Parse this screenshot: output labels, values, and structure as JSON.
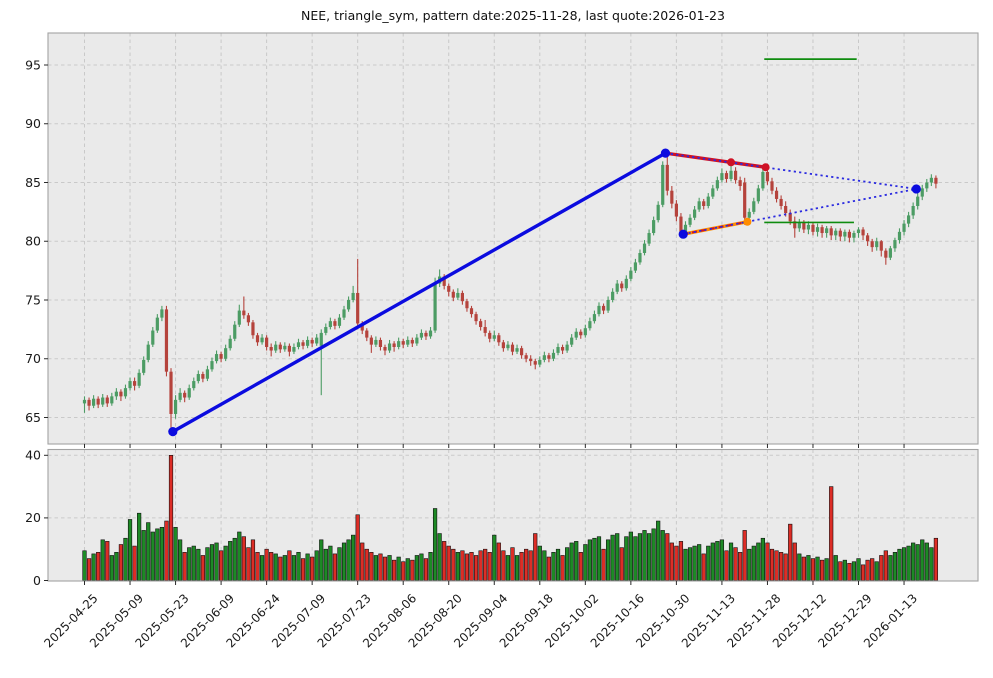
{
  "title": "NEE, triangle_sym, pattern date:2025-11-28, last quote:2026-01-23",
  "symbol": "NEE",
  "pattern_name": "triangle_sym",
  "pattern_date": "2025-11-28",
  "last_quote_date": "2026-01-23",
  "colors": {
    "pane_bg": "#eaeaea",
    "grid": "#c9c9c9",
    "spine": "#a3a3a3",
    "candle_up": "#4c9c64",
    "candle_down": "#b5433c",
    "volume_up": "#1d8a25",
    "volume_down": "#dd2d26",
    "volume_edge": "#111111",
    "trend_blue": "#0b0bdf",
    "trend_red": "#cf1225",
    "trend_orange": "#ff8c00",
    "dotted_blue": "#2a2ae0",
    "level_green": "#0f8c0f",
    "tick_text": "#1a1a1a"
  },
  "chart_data": {
    "type": "candlestick",
    "panes": [
      "price",
      "volume"
    ],
    "grid": true,
    "x_tick_step_days": 10,
    "x_tick_labels": [
      "2025-04-25",
      "2025-05-09",
      "2025-05-23",
      "2025-06-09",
      "2025-06-24",
      "2025-07-09",
      "2025-07-23",
      "2025-08-06",
      "2025-08-20",
      "2025-09-04",
      "2025-09-18",
      "2025-10-02",
      "2025-10-16",
      "2025-10-30",
      "2025-11-13",
      "2025-11-28",
      "2025-12-12",
      "2025-12-29",
      "2026-01-13"
    ],
    "price_axis": {
      "ticks": [
        65,
        70,
        75,
        80,
        85,
        90,
        95
      ],
      "range": [
        62.7,
        97.7
      ]
    },
    "volume_axis": {
      "ticks": [
        0,
        20,
        40
      ],
      "range": [
        0,
        42
      ]
    },
    "candles_format": [
      "open",
      "high",
      "low",
      "close",
      "volume"
    ],
    "candles": [
      [
        66.2,
        66.8,
        65.4,
        66.5,
        9.5
      ],
      [
        66.5,
        66.7,
        65.6,
        66.0,
        7
      ],
      [
        66.0,
        66.9,
        65.8,
        66.6,
        8.5
      ],
      [
        66.6,
        66.8,
        65.8,
        66.1,
        9
      ],
      [
        66.1,
        67.0,
        65.9,
        66.7,
        13
      ],
      [
        66.7,
        66.9,
        65.9,
        66.2,
        12.5
      ],
      [
        66.2,
        67.1,
        66.0,
        66.8,
        8
      ],
      [
        66.8,
        67.5,
        66.5,
        67.2,
        9
      ],
      [
        67.2,
        67.4,
        66.4,
        66.8,
        11.5
      ],
      [
        66.8,
        67.8,
        66.6,
        67.5,
        13.5
      ],
      [
        67.5,
        68.4,
        67.3,
        68.1,
        19.5
      ],
      [
        68.1,
        68.4,
        67.3,
        67.7,
        11
      ],
      [
        67.7,
        69.1,
        67.5,
        68.8,
        21.5
      ],
      [
        68.8,
        70.2,
        68.6,
        69.9,
        16
      ],
      [
        69.9,
        71.5,
        69.7,
        71.2,
        18.5
      ],
      [
        71.2,
        72.7,
        71.0,
        72.4,
        15.5
      ],
      [
        72.4,
        73.8,
        72.2,
        73.5,
        16.5
      ],
      [
        73.5,
        74.5,
        73.2,
        74.2,
        17
      ],
      [
        74.2,
        74.5,
        68.5,
        68.9,
        19
      ],
      [
        68.9,
        69.2,
        63.6,
        65.3,
        40
      ],
      [
        65.3,
        66.9,
        64.9,
        66.5,
        17
      ],
      [
        66.5,
        67.5,
        66.3,
        67.1,
        13
      ],
      [
        67.1,
        67.3,
        66.3,
        66.7,
        9
      ],
      [
        66.7,
        67.8,
        66.5,
        67.5,
        10.5
      ],
      [
        67.5,
        68.4,
        67.3,
        68.1,
        11
      ],
      [
        68.1,
        69.0,
        67.9,
        68.7,
        10
      ],
      [
        68.7,
        68.9,
        68.0,
        68.3,
        8
      ],
      [
        68.3,
        69.4,
        68.1,
        69.1,
        10.5
      ],
      [
        69.1,
        70.1,
        68.9,
        69.8,
        11.5
      ],
      [
        69.8,
        70.7,
        69.6,
        70.4,
        12
      ],
      [
        70.4,
        70.6,
        69.7,
        70.0,
        9.5
      ],
      [
        70.0,
        71.2,
        69.8,
        70.9,
        11
      ],
      [
        70.9,
        72.0,
        70.7,
        71.7,
        12.5
      ],
      [
        71.7,
        73.2,
        71.5,
        72.9,
        13.5
      ],
      [
        72.9,
        74.6,
        72.7,
        74.1,
        15.5
      ],
      [
        74.1,
        75.3,
        73.4,
        73.7,
        14
      ],
      [
        73.7,
        73.9,
        72.8,
        73.1,
        10.5
      ],
      [
        73.1,
        73.3,
        71.7,
        72.0,
        13
      ],
      [
        72.0,
        72.2,
        71.1,
        71.4,
        9
      ],
      [
        71.4,
        72.1,
        71.2,
        71.8,
        8
      ],
      [
        71.8,
        72.0,
        70.7,
        71.0,
        10
      ],
      [
        71.0,
        71.3,
        70.2,
        70.7,
        9
      ],
      [
        70.7,
        71.5,
        70.5,
        71.2,
        8.5
      ],
      [
        71.2,
        71.4,
        70.5,
        70.8,
        7.5
      ],
      [
        70.8,
        71.4,
        70.6,
        71.1,
        8
      ],
      [
        71.1,
        71.3,
        70.2,
        70.6,
        9.5
      ],
      [
        70.6,
        71.3,
        70.4,
        71.0,
        8
      ],
      [
        71.0,
        71.7,
        70.8,
        71.4,
        9
      ],
      [
        71.4,
        71.6,
        70.8,
        71.1,
        7
      ],
      [
        71.1,
        71.9,
        70.9,
        71.6,
        8.5
      ],
      [
        71.6,
        71.8,
        71.0,
        71.3,
        7.5
      ],
      [
        71.3,
        72.1,
        71.1,
        71.8,
        9.5
      ],
      [
        71.1,
        72.5,
        66.9,
        72.2,
        13
      ],
      [
        72.2,
        73.0,
        72.0,
        72.7,
        10
      ],
      [
        72.7,
        73.5,
        72.5,
        73.2,
        11
      ],
      [
        73.2,
        73.4,
        72.5,
        72.8,
        8.5
      ],
      [
        72.8,
        73.8,
        72.6,
        73.5,
        10.5
      ],
      [
        73.5,
        74.5,
        73.3,
        74.2,
        12
      ],
      [
        74.2,
        75.3,
        74.0,
        75.0,
        13
      ],
      [
        75.0,
        76.2,
        74.8,
        75.6,
        14.5
      ],
      [
        75.6,
        78.5,
        72.5,
        73.0,
        21
      ],
      [
        73.0,
        73.2,
        72.1,
        72.4,
        12
      ],
      [
        72.4,
        72.6,
        71.5,
        71.8,
        10
      ],
      [
        71.8,
        72.0,
        70.5,
        71.2,
        9
      ],
      [
        71.2,
        71.9,
        71.0,
        71.6,
        8
      ],
      [
        71.6,
        71.8,
        70.7,
        71.0,
        8.5
      ],
      [
        71.0,
        71.2,
        70.3,
        70.7,
        7.5
      ],
      [
        70.7,
        71.6,
        70.5,
        71.3,
        8
      ],
      [
        71.3,
        71.5,
        70.6,
        71.0,
        6.5
      ],
      [
        71.0,
        71.8,
        70.8,
        71.5,
        7.5
      ],
      [
        71.5,
        71.7,
        70.9,
        71.2,
        6
      ],
      [
        71.2,
        71.9,
        71.0,
        71.6,
        7
      ],
      [
        71.6,
        71.8,
        71.0,
        71.3,
        6.5
      ],
      [
        71.3,
        72.1,
        71.1,
        71.8,
        8
      ],
      [
        71.8,
        72.5,
        71.6,
        72.2,
        8.5
      ],
      [
        72.2,
        72.4,
        71.6,
        71.9,
        7
      ],
      [
        71.9,
        72.7,
        71.7,
        72.4,
        9
      ],
      [
        72.4,
        76.9,
        72.2,
        76.4,
        23
      ],
      [
        76.4,
        77.6,
        76.1,
        77.0,
        15
      ],
      [
        77.0,
        77.2,
        75.9,
        76.2,
        12.5
      ],
      [
        76.2,
        76.4,
        75.3,
        75.7,
        11
      ],
      [
        75.7,
        75.9,
        74.9,
        75.2,
        10
      ],
      [
        75.2,
        76.0,
        75.0,
        75.6,
        9
      ],
      [
        75.6,
        75.8,
        74.6,
        74.9,
        9.5
      ],
      [
        74.9,
        75.1,
        74.0,
        74.3,
        8.5
      ],
      [
        74.3,
        74.5,
        73.5,
        73.8,
        9
      ],
      [
        73.8,
        74.0,
        72.9,
        73.2,
        8
      ],
      [
        73.2,
        73.4,
        72.4,
        72.7,
        9.5
      ],
      [
        72.7,
        73.3,
        71.9,
        72.2,
        10
      ],
      [
        72.2,
        72.4,
        71.4,
        71.7,
        9
      ],
      [
        71.7,
        72.4,
        71.5,
        72.0,
        14.5
      ],
      [
        72.0,
        72.2,
        71.1,
        71.4,
        12
      ],
      [
        71.4,
        71.6,
        70.6,
        70.9,
        9.5
      ],
      [
        70.9,
        71.5,
        70.7,
        71.2,
        8
      ],
      [
        71.2,
        71.4,
        70.3,
        70.6,
        10.5
      ],
      [
        70.6,
        71.2,
        70.4,
        70.9,
        8
      ],
      [
        70.9,
        71.1,
        70.0,
        70.3,
        9
      ],
      [
        70.3,
        70.5,
        69.7,
        70.0,
        10
      ],
      [
        70.0,
        70.3,
        69.4,
        69.8,
        9.5
      ],
      [
        69.8,
        70.0,
        69.1,
        69.5,
        15
      ],
      [
        69.5,
        70.2,
        69.3,
        69.9,
        11
      ],
      [
        69.9,
        70.6,
        69.7,
        70.3,
        9.5
      ],
      [
        70.3,
        70.5,
        69.7,
        70.0,
        7.5
      ],
      [
        70.0,
        70.8,
        69.8,
        70.5,
        9
      ],
      [
        70.5,
        71.3,
        70.3,
        71.0,
        10
      ],
      [
        71.0,
        71.2,
        70.4,
        70.7,
        8
      ],
      [
        70.7,
        71.5,
        70.5,
        71.2,
        10.5
      ],
      [
        71.2,
        72.1,
        71.0,
        71.8,
        12
      ],
      [
        71.8,
        72.6,
        71.6,
        72.3,
        12.5
      ],
      [
        72.3,
        72.5,
        71.7,
        72.0,
        9
      ],
      [
        72.0,
        72.9,
        71.8,
        72.6,
        11.5
      ],
      [
        72.6,
        73.5,
        72.4,
        73.2,
        13
      ],
      [
        73.2,
        74.1,
        73.0,
        73.8,
        13.5
      ],
      [
        73.8,
        74.8,
        73.6,
        74.5,
        14
      ],
      [
        74.5,
        74.7,
        73.8,
        74.1,
        10
      ],
      [
        74.1,
        75.3,
        73.9,
        75.0,
        13
      ],
      [
        75.0,
        76.0,
        74.8,
        75.7,
        14.5
      ],
      [
        75.7,
        76.7,
        75.5,
        76.4,
        15
      ],
      [
        76.4,
        76.6,
        75.7,
        76.0,
        10.5
      ],
      [
        76.0,
        77.1,
        75.8,
        76.8,
        14
      ],
      [
        76.8,
        77.8,
        76.6,
        77.5,
        15.5
      ],
      [
        77.5,
        78.5,
        77.3,
        78.2,
        14
      ],
      [
        78.2,
        79.3,
        78.0,
        79.0,
        15
      ],
      [
        79.0,
        80.1,
        78.8,
        79.8,
        16
      ],
      [
        79.8,
        81.0,
        79.6,
        80.7,
        15
      ],
      [
        80.7,
        82.1,
        80.5,
        81.8,
        16.5
      ],
      [
        81.8,
        83.4,
        81.6,
        83.1,
        19
      ],
      [
        83.1,
        86.8,
        82.9,
        86.5,
        16
      ],
      [
        86.5,
        87.5,
        83.9,
        84.3,
        15
      ],
      [
        84.3,
        84.7,
        82.8,
        83.2,
        12
      ],
      [
        83.2,
        83.5,
        81.7,
        82.1,
        11
      ],
      [
        82.1,
        82.4,
        80.4,
        80.8,
        12.5
      ],
      [
        80.8,
        81.7,
        80.5,
        81.4,
        10
      ],
      [
        81.4,
        82.3,
        81.2,
        82.0,
        10.5
      ],
      [
        82.0,
        83.0,
        81.8,
        82.7,
        11
      ],
      [
        82.7,
        83.7,
        82.5,
        83.4,
        11.5
      ],
      [
        83.4,
        83.6,
        82.7,
        83.0,
        8.5
      ],
      [
        83.0,
        84.1,
        82.8,
        83.8,
        11
      ],
      [
        83.8,
        84.8,
        83.6,
        84.5,
        12
      ],
      [
        84.5,
        85.5,
        84.3,
        85.2,
        12.5
      ],
      [
        85.2,
        86.2,
        85.0,
        85.8,
        13
      ],
      [
        85.8,
        86.0,
        85.0,
        85.3,
        9.5
      ],
      [
        85.3,
        86.7,
        85.1,
        86.0,
        12
      ],
      [
        86.0,
        86.3,
        84.9,
        85.2,
        10.5
      ],
      [
        85.2,
        85.5,
        84.3,
        84.7,
        9
      ],
      [
        85.0,
        85.4,
        81.4,
        82.0,
        16
      ],
      [
        82.0,
        82.8,
        81.5,
        82.5,
        10
      ],
      [
        82.5,
        83.7,
        82.3,
        83.4,
        11
      ],
      [
        83.4,
        84.8,
        83.2,
        84.5,
        12
      ],
      [
        84.5,
        86.2,
        84.3,
        85.9,
        13.5
      ],
      [
        85.9,
        86.3,
        84.8,
        85.1,
        12
      ],
      [
        85.1,
        85.4,
        84.0,
        84.3,
        10
      ],
      [
        84.3,
        84.6,
        83.3,
        83.6,
        9.5
      ],
      [
        83.6,
        83.9,
        82.7,
        83.0,
        9
      ],
      [
        83.0,
        83.4,
        82.1,
        82.4,
        8.5
      ],
      [
        82.4,
        82.7,
        81.4,
        81.7,
        18
      ],
      [
        81.7,
        82.1,
        80.3,
        81.1,
        12
      ],
      [
        81.1,
        81.9,
        80.8,
        81.6,
        8.5
      ],
      [
        81.6,
        81.8,
        80.7,
        81.0,
        7.5
      ],
      [
        81.0,
        81.7,
        80.6,
        81.4,
        8
      ],
      [
        81.4,
        81.6,
        80.5,
        80.8,
        7
      ],
      [
        80.8,
        81.5,
        80.4,
        81.2,
        7.5
      ],
      [
        81.2,
        81.4,
        80.3,
        80.7,
        6.5
      ],
      [
        80.7,
        81.3,
        80.3,
        81.1,
        7
      ],
      [
        81.1,
        81.3,
        80.1,
        80.5,
        30
      ],
      [
        80.5,
        81.1,
        80.1,
        80.9,
        8
      ],
      [
        80.9,
        81.1,
        80.0,
        80.4,
        6
      ],
      [
        80.4,
        81.0,
        80.0,
        80.8,
        6.5
      ],
      [
        80.8,
        81.0,
        79.9,
        80.3,
        5.5
      ],
      [
        80.3,
        80.9,
        79.9,
        80.7,
        6
      ],
      [
        80.7,
        81.2,
        80.3,
        81.0,
        7
      ],
      [
        81.0,
        81.2,
        80.1,
        80.5,
        5
      ],
      [
        80.5,
        80.7,
        79.6,
        80.0,
        6.5
      ],
      [
        80.0,
        80.2,
        79.1,
        79.5,
        7
      ],
      [
        79.5,
        80.3,
        79.2,
        80.0,
        6
      ],
      [
        80.0,
        80.1,
        78.7,
        79.2,
        8
      ],
      [
        79.2,
        79.4,
        78.0,
        78.6,
        9.5
      ],
      [
        78.6,
        79.6,
        78.4,
        79.4,
        8
      ],
      [
        79.4,
        80.3,
        79.1,
        80.1,
        9
      ],
      [
        80.1,
        81.1,
        79.8,
        80.8,
        10
      ],
      [
        80.8,
        81.8,
        80.5,
        81.5,
        10.5
      ],
      [
        81.5,
        82.5,
        81.2,
        82.2,
        11
      ],
      [
        82.2,
        83.3,
        81.9,
        83.0,
        12
      ],
      [
        83.0,
        84.1,
        82.7,
        83.8,
        11.5
      ],
      [
        83.8,
        84.8,
        83.5,
        84.5,
        13
      ],
      [
        84.5,
        85.3,
        84.2,
        85.0,
        12
      ],
      [
        85.0,
        85.7,
        84.7,
        85.4,
        10.5
      ],
      [
        85.4,
        85.6,
        84.5,
        84.9,
        13.5
      ]
    ],
    "overlays": {
      "uptrend_line": {
        "style": "solid",
        "width": 3.4,
        "points": [
          [
            19.4,
            63.8
          ],
          [
            127.6,
            87.5
          ]
        ]
      },
      "upper_trend_line": {
        "style": "solid",
        "width": 3.4,
        "points": [
          [
            127.6,
            87.5
          ],
          [
            149.6,
            86.3
          ]
        ]
      },
      "lower_trend_line": {
        "style": "solid",
        "width": 3.4,
        "points": [
          [
            131.5,
            80.6
          ],
          [
            145.6,
            81.66
          ]
        ],
        "dash_overlay": true
      },
      "apex_dotted_lines": [
        {
          "points": [
            [
              127.6,
              87.5
            ],
            [
              182.7,
              84.45
            ]
          ]
        },
        {
          "points": [
            [
              131.5,
              80.6
            ],
            [
              182.7,
              84.45
            ]
          ]
        }
      ],
      "green_levels": [
        {
          "price": 95.5,
          "from_index": 149.3,
          "to_index": 169.6
        },
        {
          "price": 81.6,
          "from_index": 149.3,
          "to_index": 169.0
        }
      ],
      "markers": {
        "blue": [
          [
            19.4,
            63.8
          ],
          [
            127.6,
            87.5
          ],
          [
            131.5,
            80.6
          ],
          [
            182.7,
            84.45
          ]
        ],
        "red": [
          [
            142.0,
            86.72
          ],
          [
            149.6,
            86.3
          ]
        ],
        "orange": [
          [
            145.6,
            81.66
          ]
        ]
      }
    }
  }
}
